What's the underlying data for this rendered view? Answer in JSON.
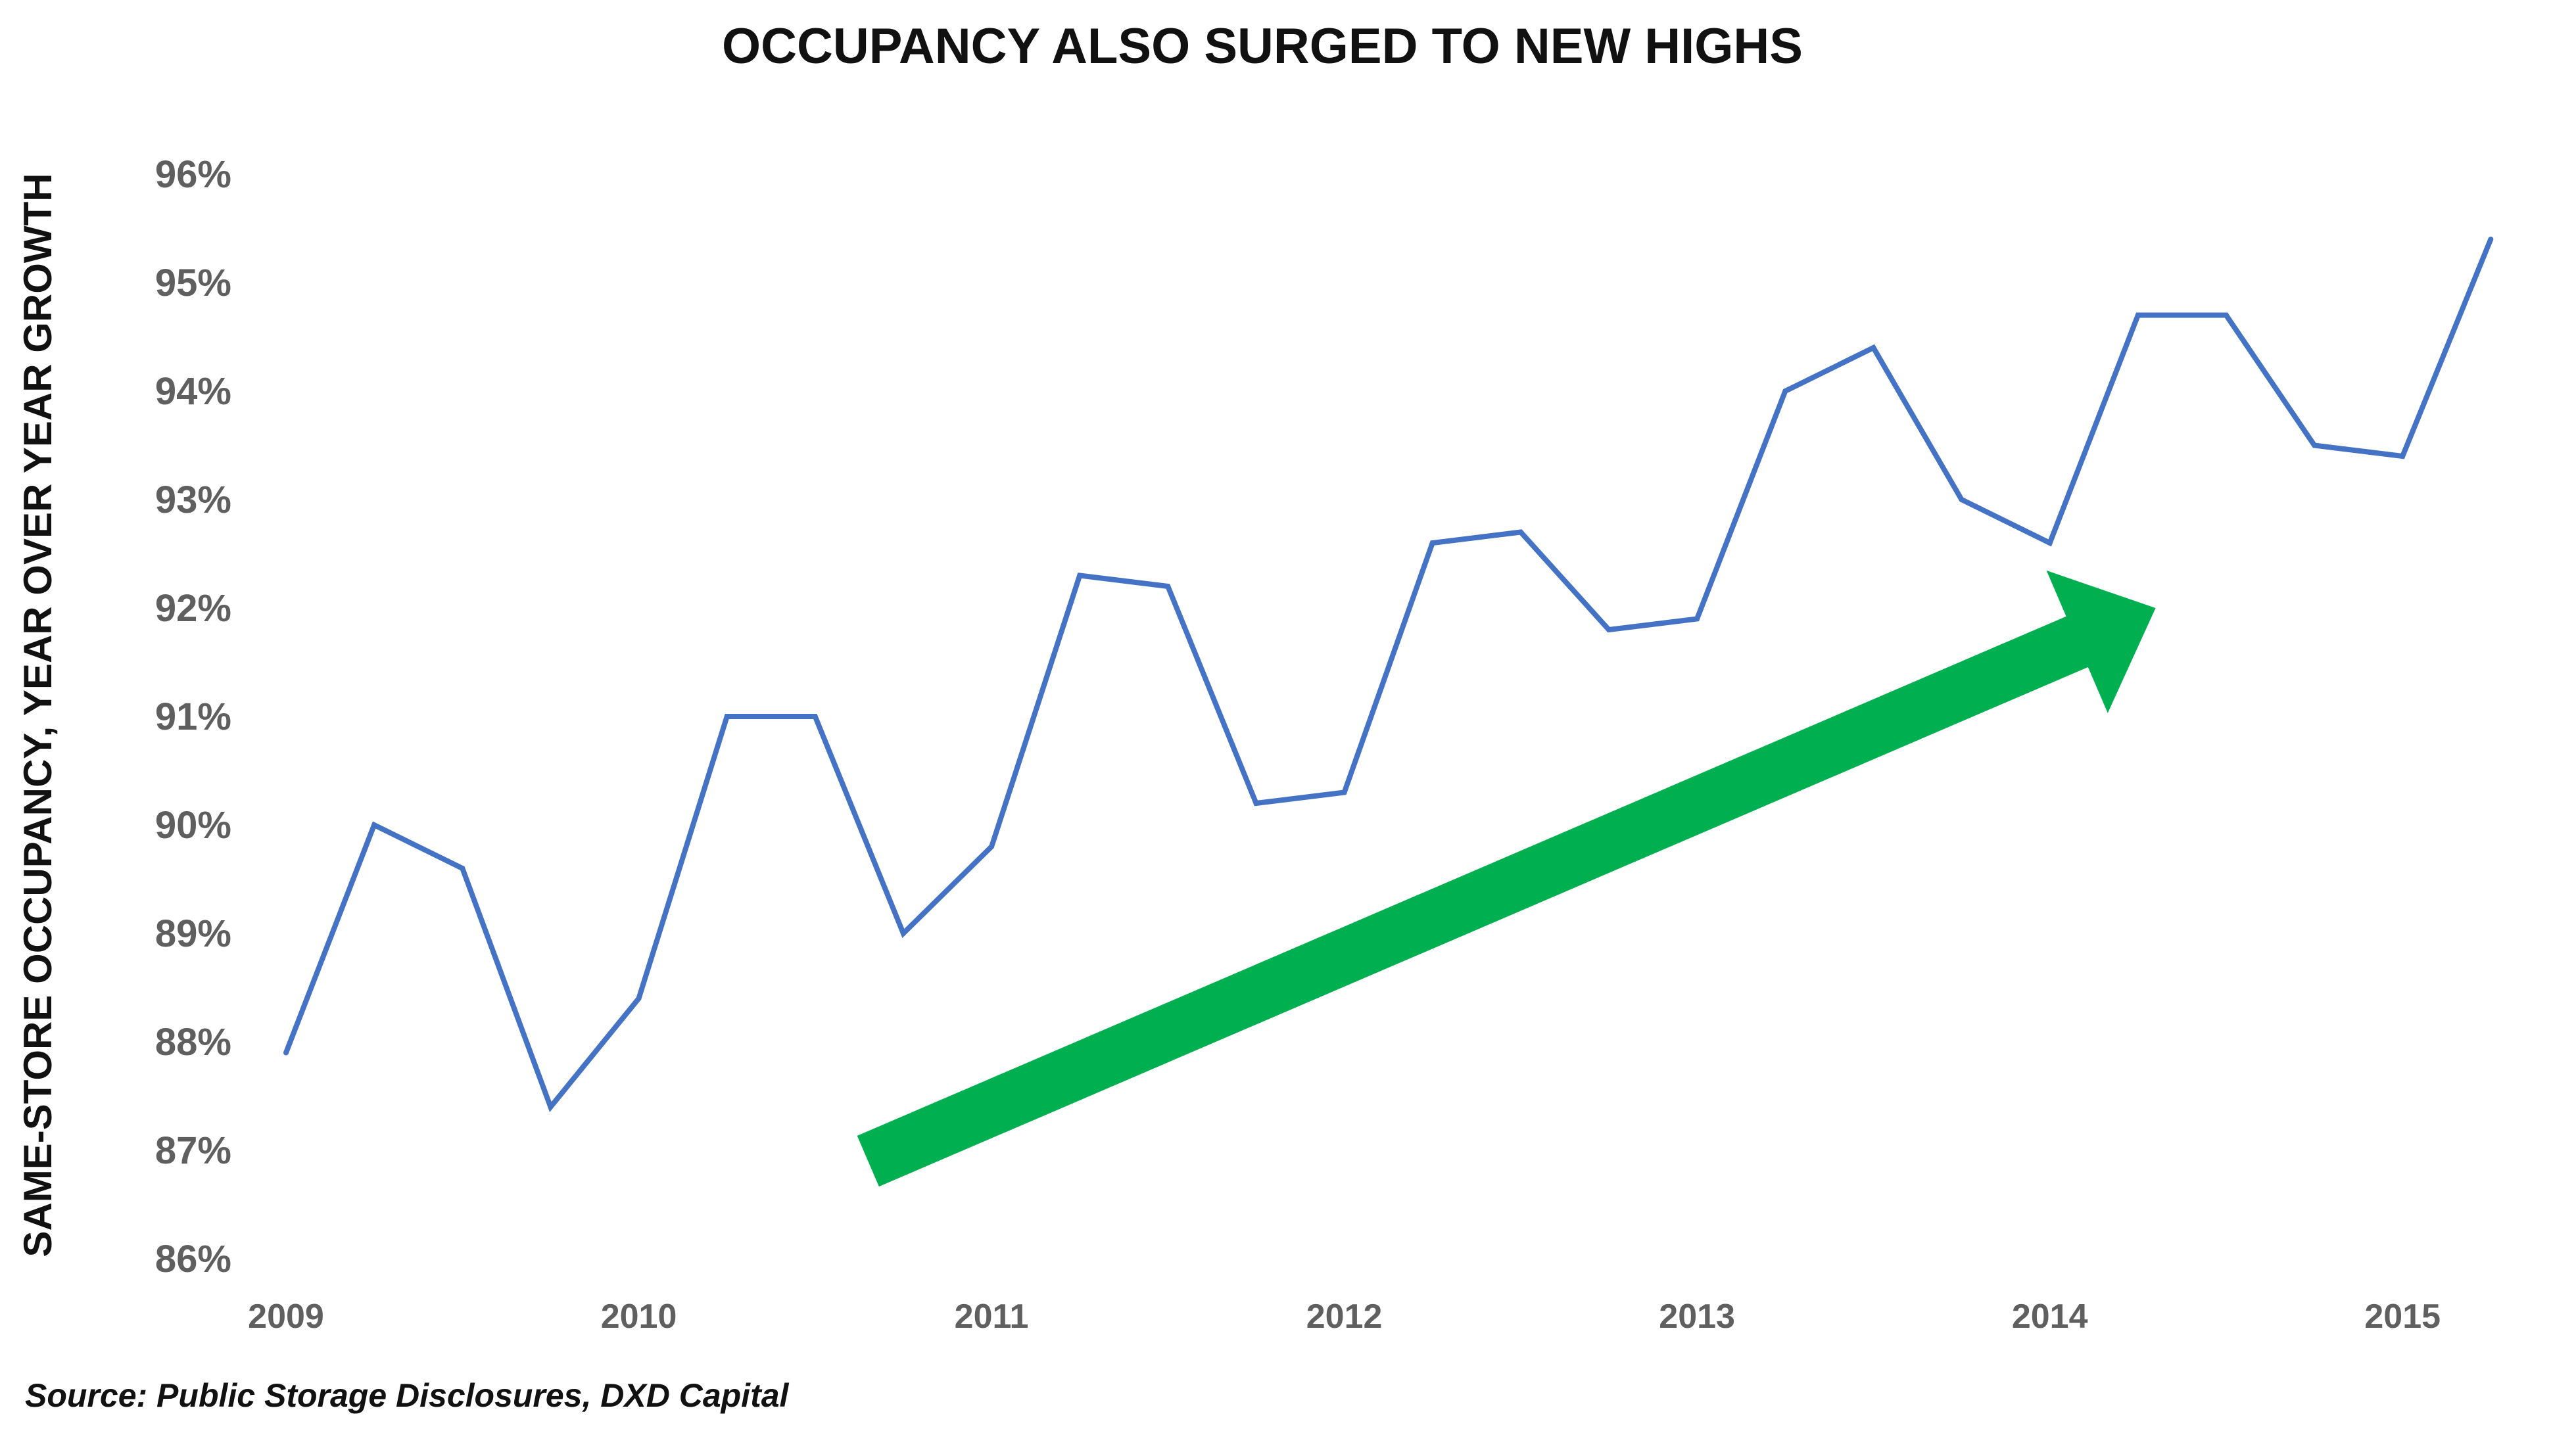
{
  "chart_data": {
    "type": "line",
    "title": "OCCUPANCY ALSO SURGED TO NEW HIGHS",
    "xlabel": "",
    "ylabel": "SAME-STORE OCCUPANCY, YEAR OVER YEAR GROWTH",
    "source": "Source: Public Storage Disclosures, DXD Capital",
    "ylim": [
      86,
      96
    ],
    "xlim": [
      2009.0,
      2015.35
    ],
    "yticks": [
      {
        "value": 96,
        "label": "96%"
      },
      {
        "value": 95,
        "label": "95%"
      },
      {
        "value": 94,
        "label": "94%"
      },
      {
        "value": 93,
        "label": "93%"
      },
      {
        "value": 92,
        "label": "92%"
      },
      {
        "value": 91,
        "label": "91%"
      },
      {
        "value": 90,
        "label": "90%"
      },
      {
        "value": 89,
        "label": "89%"
      },
      {
        "value": 88,
        "label": "88%"
      },
      {
        "value": 87,
        "label": "87%"
      },
      {
        "value": 86,
        "label": "86%"
      }
    ],
    "xticks": [
      {
        "value": 2009,
        "label": "2009"
      },
      {
        "value": 2010,
        "label": "2010"
      },
      {
        "value": 2011,
        "label": "2011"
      },
      {
        "value": 2012,
        "label": "2012"
      },
      {
        "value": 2013,
        "label": "2013"
      },
      {
        "value": 2014,
        "label": "2014"
      },
      {
        "value": 2015,
        "label": "2015"
      }
    ],
    "series": [
      {
        "name": "Same-store occupancy",
        "color": "#4472C4",
        "x": [
          2009.0,
          2009.25,
          2009.5,
          2009.75,
          2010.0,
          2010.25,
          2010.5,
          2010.75,
          2011.0,
          2011.25,
          2011.5,
          2011.75,
          2012.0,
          2012.25,
          2012.5,
          2012.75,
          2013.0,
          2013.25,
          2013.5,
          2013.75,
          2014.0,
          2014.25,
          2014.5,
          2014.75,
          2015.0,
          2015.25
        ],
        "values": [
          87.9,
          90.0,
          89.6,
          87.4,
          88.4,
          91.0,
          91.0,
          89.0,
          89.8,
          92.3,
          92.2,
          90.2,
          90.3,
          92.6,
          92.7,
          91.8,
          91.9,
          94.0,
          94.4,
          93.0,
          92.6,
          94.7,
          94.7,
          93.5,
          93.4,
          95.4
        ]
      }
    ],
    "annotations": [
      {
        "type": "trend-arrow",
        "color": "#00B050",
        "from": {
          "x": 2010.65,
          "y": 86.9
        },
        "to": {
          "x": 2014.3,
          "y": 92.0
        }
      }
    ]
  }
}
